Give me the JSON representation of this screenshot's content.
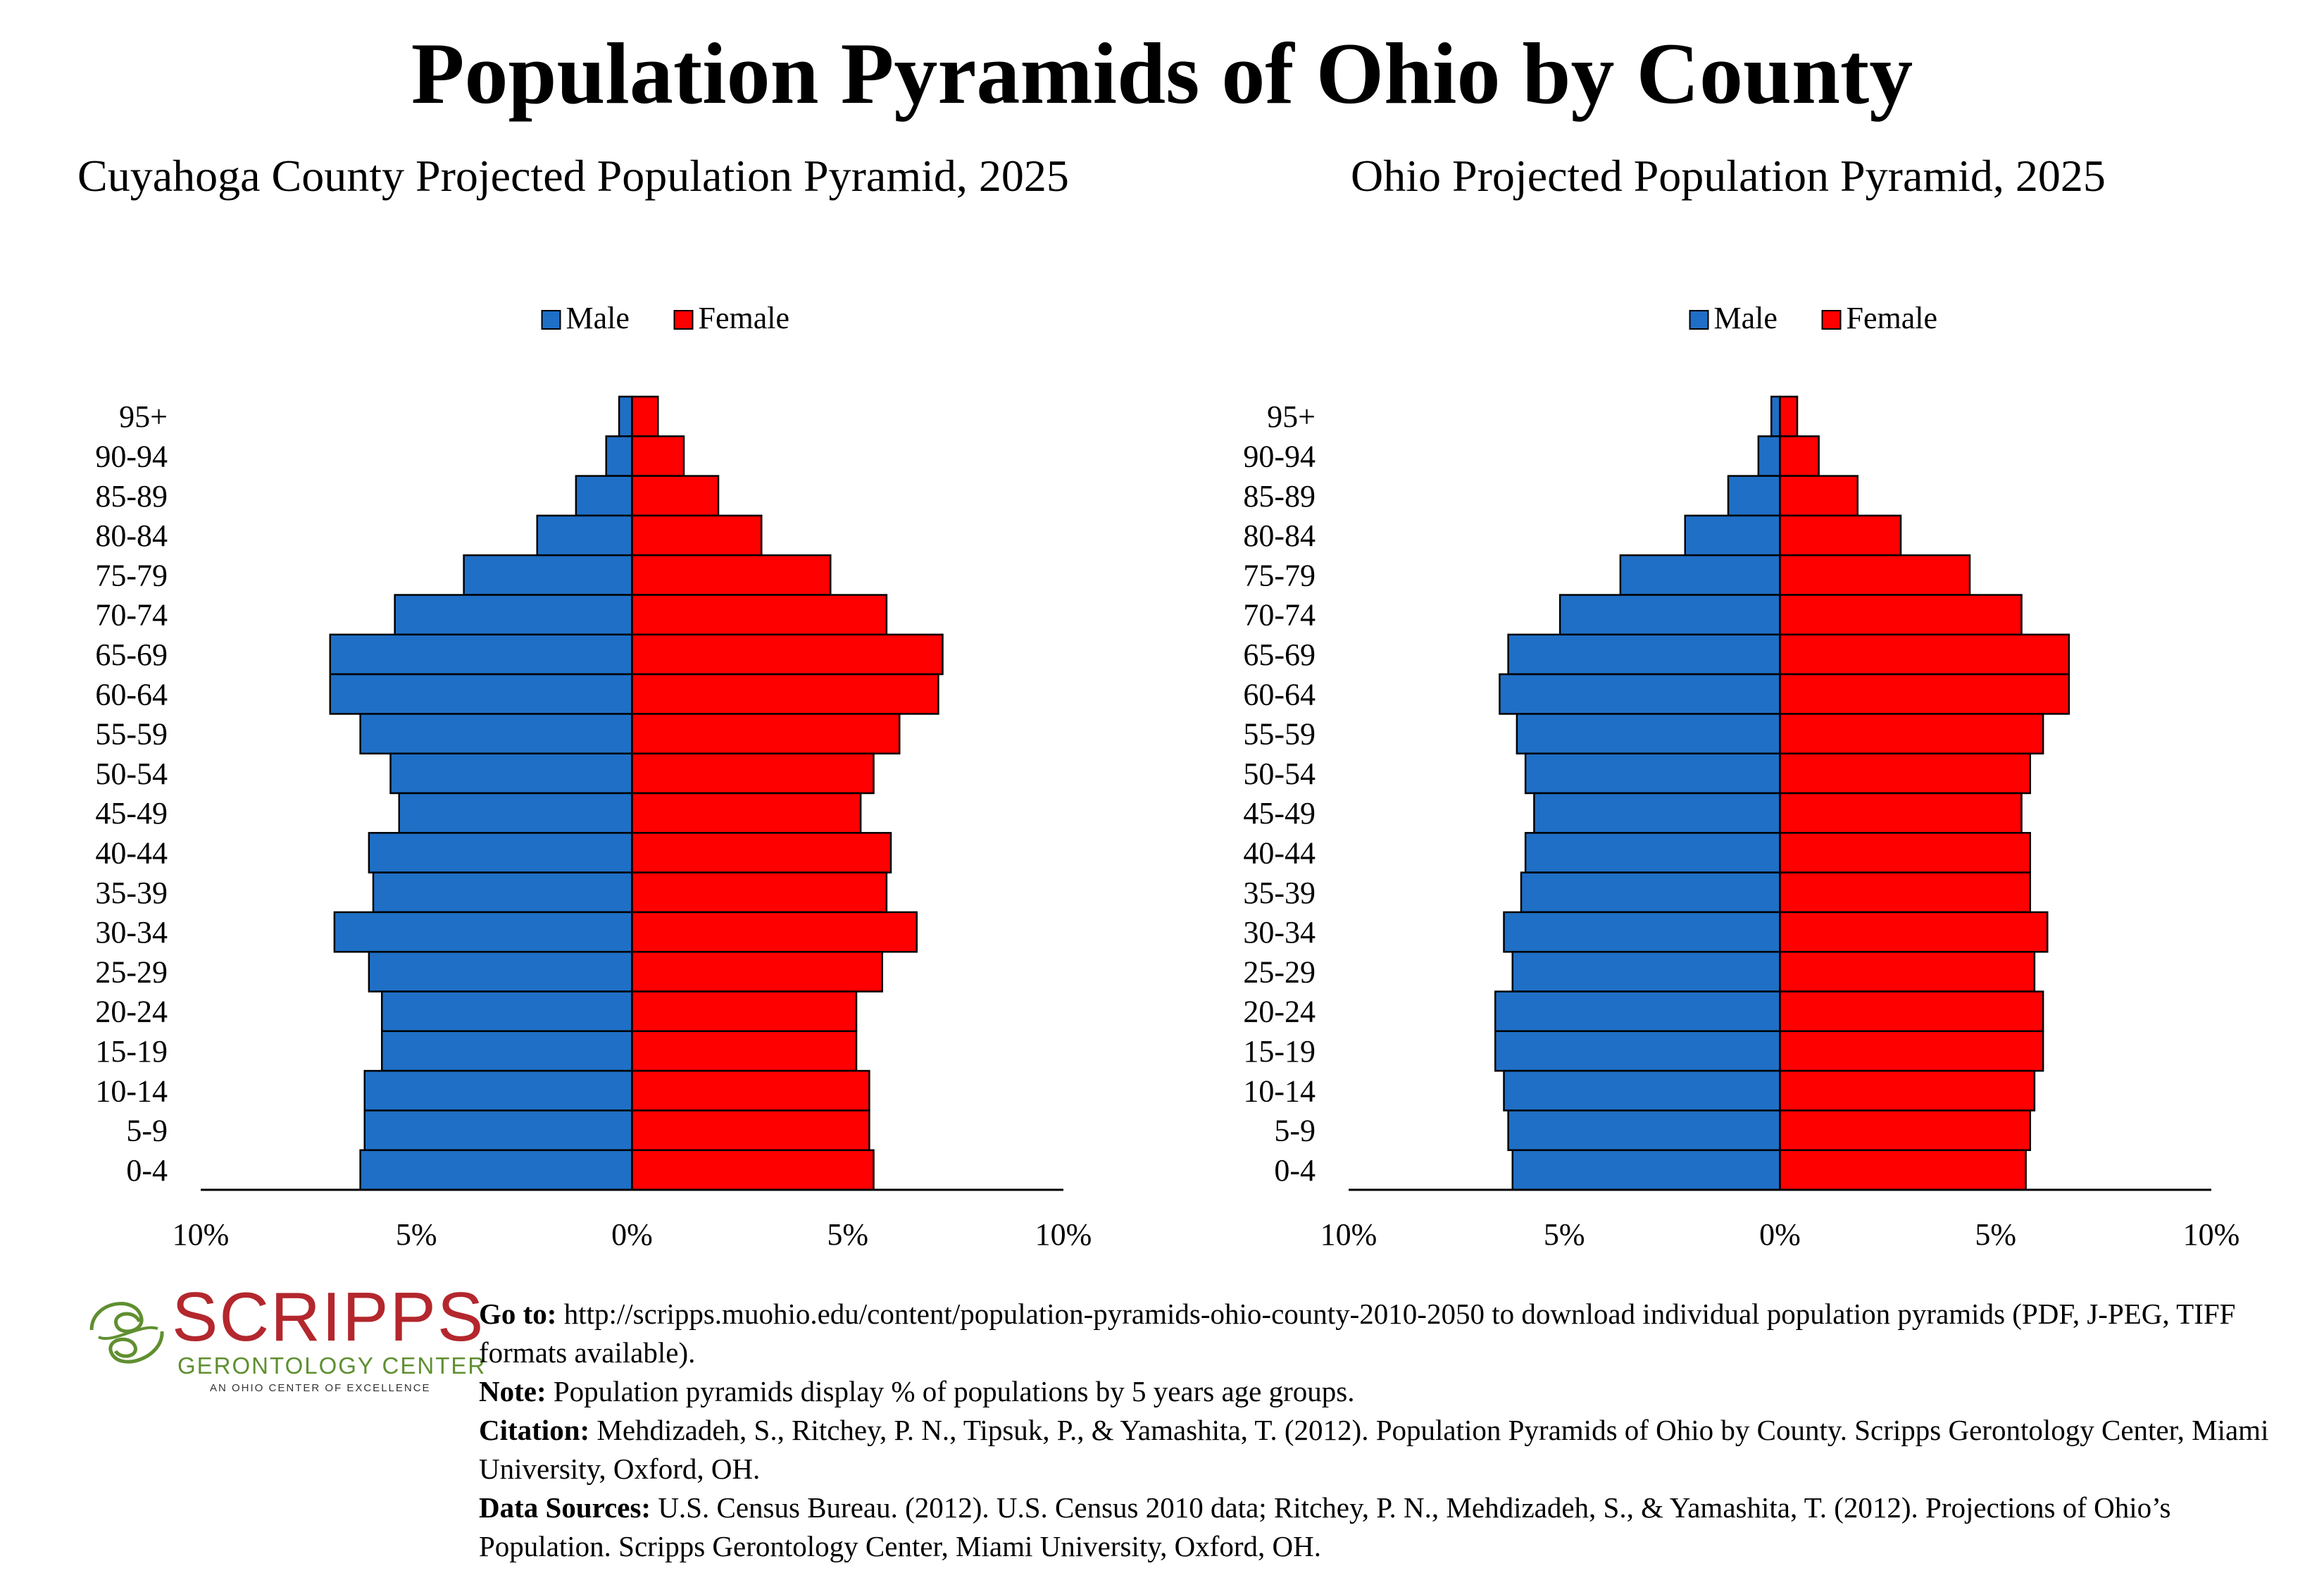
{
  "main_title": "Population Pyramids of Ohio by County",
  "colors": {
    "male": "#1f6fc6",
    "female": "#ff0000"
  },
  "chart_data": [
    {
      "type": "bar",
      "title": "Cuyahoga County Projected Population Pyramid, 2025",
      "orientation": "horizontal-pyramid",
      "categories": [
        "95+",
        "90-94",
        "85-89",
        "80-84",
        "75-79",
        "70-74",
        "65-69",
        "60-64",
        "55-59",
        "50-54",
        "45-49",
        "40-44",
        "35-39",
        "30-34",
        "25-29",
        "20-24",
        "15-19",
        "10-14",
        "5-9",
        "0-4"
      ],
      "series": [
        {
          "name": "Male",
          "values": [
            0.3,
            0.6,
            1.3,
            2.2,
            3.9,
            5.5,
            7.0,
            7.0,
            6.3,
            5.6,
            5.4,
            6.1,
            6.0,
            6.9,
            6.1,
            5.8,
            5.8,
            6.2,
            6.2,
            6.3
          ]
        },
        {
          "name": "Female",
          "values": [
            0.6,
            1.2,
            2.0,
            3.0,
            4.6,
            5.9,
            7.2,
            7.1,
            6.2,
            5.6,
            5.3,
            6.0,
            5.9,
            6.6,
            5.8,
            5.2,
            5.2,
            5.5,
            5.5,
            5.6
          ]
        }
      ],
      "legend": [
        "Male",
        "Female"
      ],
      "legend_position": "top",
      "xlim": [
        -10,
        10
      ],
      "x_tick_labels": [
        "10%",
        "5%",
        "0%",
        "5%",
        "10%"
      ],
      "grid": false
    },
    {
      "type": "bar",
      "title": "Ohio Projected Population Pyramid, 2025",
      "orientation": "horizontal-pyramid",
      "categories": [
        "95+",
        "90-94",
        "85-89",
        "80-84",
        "75-79",
        "70-74",
        "65-69",
        "60-64",
        "55-59",
        "50-54",
        "45-49",
        "40-44",
        "35-39",
        "30-34",
        "25-29",
        "20-24",
        "15-19",
        "10-14",
        "5-9",
        "0-4"
      ],
      "series": [
        {
          "name": "Male",
          "values": [
            0.2,
            0.5,
            1.2,
            2.2,
            3.7,
            5.1,
            6.3,
            6.5,
            6.1,
            5.9,
            5.7,
            5.9,
            6.0,
            6.4,
            6.2,
            6.6,
            6.6,
            6.4,
            6.3,
            6.2
          ]
        },
        {
          "name": "Female",
          "values": [
            0.4,
            0.9,
            1.8,
            2.8,
            4.4,
            5.6,
            6.7,
            6.7,
            6.1,
            5.8,
            5.6,
            5.8,
            5.8,
            6.2,
            5.9,
            6.1,
            6.1,
            5.9,
            5.8,
            5.7
          ]
        }
      ],
      "legend": [
        "Male",
        "Female"
      ],
      "legend_position": "top",
      "xlim": [
        -10,
        10
      ],
      "x_tick_labels": [
        "10%",
        "5%",
        "0%",
        "5%",
        "10%"
      ],
      "grid": false
    }
  ],
  "logo": {
    "word": "SCRIPPS",
    "sub": "GERONTOLOGY CENTER",
    "tag": "AN OHIO CENTER OF EXCELLENCE"
  },
  "notes": {
    "goto_label": "Go to:",
    "goto_text": "http://scripps.muohio.edu/content/population-pyramids-ohio-county-2010-2050 to download individual population pyramids (PDF, J-PEG, TIFF formats available).",
    "note_label": "Note:",
    "note_text": "Population pyramids display % of populations by 5 years age groups.",
    "citation_label": "Citation:",
    "citation_text": "Mehdizadeh, S., Ritchey, P. N., Tipsuk, P., & Yamashita, T. (2012). Population Pyramids of Ohio by County. Scripps Gerontology Center, Miami University, Oxford, OH.",
    "sources_label": "Data Sources:",
    "sources_text": "U.S. Census Bureau. (2012). U.S. Census 2010 data; Ritchey, P. N., Mehdizadeh, S., & Yamashita, T. (2012). Projections of Ohio’s Population. Scripps Gerontology Center, Miami University, Oxford, OH."
  }
}
